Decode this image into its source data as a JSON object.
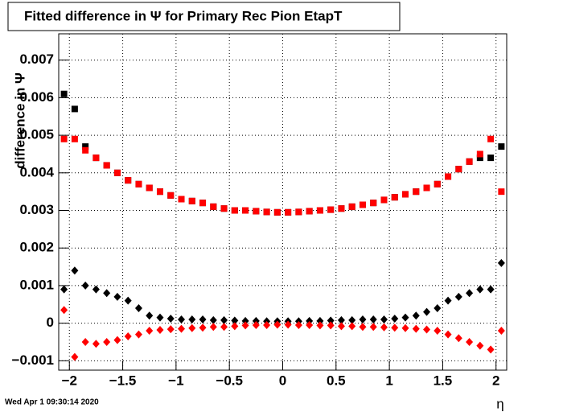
{
  "chart_data": {
    "type": "scatter",
    "title": "Fitted difference in  Ψ  for Primary Rec Pion EtapT",
    "y_label": "difference in Ψ",
    "x_label": "η",
    "timestamp": "Wed Apr  1 09:30:14 2020",
    "x": [
      -2.05,
      -1.95,
      -1.85,
      -1.75,
      -1.65,
      -1.55,
      -1.45,
      -1.35,
      -1.25,
      -1.15,
      -1.05,
      -0.95,
      -0.85,
      -0.75,
      -0.65,
      -0.55,
      -0.45,
      -0.35,
      -0.25,
      -0.15,
      -0.05,
      0.05,
      0.15,
      0.25,
      0.35,
      0.45,
      0.55,
      0.65,
      0.75,
      0.85,
      0.95,
      1.05,
      1.15,
      1.25,
      1.35,
      1.45,
      1.55,
      1.65,
      1.75,
      1.85,
      1.95,
      2.05
    ],
    "series": [
      {
        "color": "#000000",
        "marker": "square",
        "values": [
          0.0061,
          0.0057,
          0.0047,
          0.0044,
          0.0042,
          0.004,
          0.0038,
          0.0037,
          0.0036,
          0.0035,
          0.0034,
          0.0033,
          0.00325,
          0.0032,
          0.0031,
          0.00305,
          0.003,
          0.003,
          0.00298,
          0.00296,
          0.00295,
          0.00295,
          0.00296,
          0.00298,
          0.003,
          0.00302,
          0.00305,
          0.0031,
          0.00315,
          0.0032,
          0.00328,
          0.00335,
          0.00343,
          0.0035,
          0.0036,
          0.0037,
          0.0039,
          0.0041,
          0.0043,
          0.0044,
          0.0044,
          0.0047
        ]
      },
      {
        "color": "#ff0000",
        "marker": "square",
        "values": [
          0.0049,
          0.0049,
          0.0046,
          0.0044,
          0.0042,
          0.004,
          0.0038,
          0.0037,
          0.0036,
          0.0035,
          0.0034,
          0.0033,
          0.00325,
          0.0032,
          0.0031,
          0.00305,
          0.003,
          0.003,
          0.00298,
          0.00296,
          0.00295,
          0.00295,
          0.00296,
          0.00298,
          0.003,
          0.00302,
          0.00305,
          0.0031,
          0.00315,
          0.0032,
          0.00328,
          0.00335,
          0.00343,
          0.0035,
          0.0036,
          0.0037,
          0.0039,
          0.0041,
          0.0043,
          0.0045,
          0.0049,
          0.0035
        ]
      },
      {
        "color": "#000000",
        "marker": "diamond",
        "values": [
          0.0009,
          0.0014,
          0.001,
          0.0009,
          0.0008,
          0.0007,
          0.0006,
          0.0004,
          0.0002,
          0.00015,
          0.00012,
          0.0001,
          0.0001,
          0.0001,
          8e-05,
          8e-05,
          7e-05,
          6e-05,
          6e-05,
          5e-05,
          5e-05,
          5e-05,
          5e-05,
          6e-05,
          6e-05,
          7e-05,
          8e-05,
          8e-05,
          0.0001,
          0.0001,
          0.0001,
          0.00012,
          0.00015,
          0.0002,
          0.0003,
          0.0004,
          0.0006,
          0.0007,
          0.0008,
          0.0009,
          0.0009,
          0.0016
        ]
      },
      {
        "color": "#ff0000",
        "marker": "diamond",
        "values": [
          0.00035,
          -0.0009,
          -0.0005,
          -0.00055,
          -0.0005,
          -0.00045,
          -0.00035,
          -0.0003,
          -0.0002,
          -0.00018,
          -0.00016,
          -0.00015,
          -0.00013,
          -0.00012,
          -0.0001,
          -0.0001,
          -8e-05,
          -6e-05,
          -5e-05,
          -5e-05,
          -4e-05,
          -4e-05,
          -5e-05,
          -5e-05,
          -6e-05,
          -6e-05,
          -8e-05,
          -8e-05,
          -0.0001,
          -0.0001,
          -0.00011,
          -0.00012,
          -0.00013,
          -0.00015,
          -0.00017,
          -0.0002,
          -0.0003,
          -0.0004,
          -0.0005,
          -0.0006,
          -0.0007,
          -0.0002
        ]
      }
    ],
    "xlim": [
      -2.1,
      2.1
    ],
    "ylim": [
      -0.00125,
      0.0077
    ],
    "xticks": [
      {
        "value": -2,
        "label": "−2"
      },
      {
        "value": -1.5,
        "label": "−1.5"
      },
      {
        "value": -1,
        "label": "−1"
      },
      {
        "value": -0.5,
        "label": "−0.5"
      },
      0,
      0.5,
      1,
      1.5,
      2
    ],
    "yticks": [
      {
        "value": -0.001,
        "label": "−0.001"
      },
      0,
      0.001,
      0.002,
      0.003,
      0.004,
      0.005,
      0.006,
      0.007
    ],
    "grid": true
  }
}
